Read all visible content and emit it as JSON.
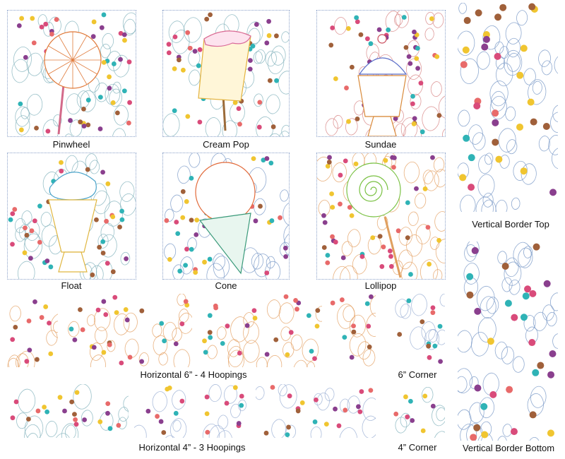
{
  "colors": {
    "dots": [
      "#d94b7a",
      "#f0c530",
      "#2fb3b6",
      "#8a3f8e",
      "#a0603a",
      "#e86a6a"
    ],
    "stipple": [
      "#7e9cc9",
      "#9fb3d6",
      "#c9a0c9",
      "#d98a8a",
      "#e5a46a",
      "#88b6c0"
    ]
  },
  "blocks": [
    {
      "id": "pinwheel",
      "caption": "Pinwheel",
      "icon": "pinwheel-lollipop-icon",
      "accent": "#e07a3a"
    },
    {
      "id": "cream-pop",
      "caption": "Cream Pop",
      "icon": "cream-pop-icon",
      "accent": "#e3b23c"
    },
    {
      "id": "sundae",
      "caption": "Sundae",
      "icon": "sundae-icon",
      "accent": "#d98a3a"
    },
    {
      "id": "float",
      "caption": "Float",
      "icon": "float-glass-icon",
      "accent": "#e0b640"
    },
    {
      "id": "cone",
      "caption": "Cone",
      "icon": "ice-cream-cone-icon",
      "accent": "#e26a3a"
    },
    {
      "id": "lollipop",
      "caption": "Lollipop",
      "icon": "swirl-lollipop-icon",
      "accent": "#7ac143"
    }
  ],
  "borders": {
    "vertical_top": "Vertical Border Top",
    "vertical_bottom": "Vertical Border Bottom",
    "horizontal_6": "Horizontal 6” - 4 Hoopings",
    "corner_6": "6” Corner",
    "horizontal_4": "Horizontal 4” - 3 Hoopings",
    "corner_4": "4” Corner"
  }
}
